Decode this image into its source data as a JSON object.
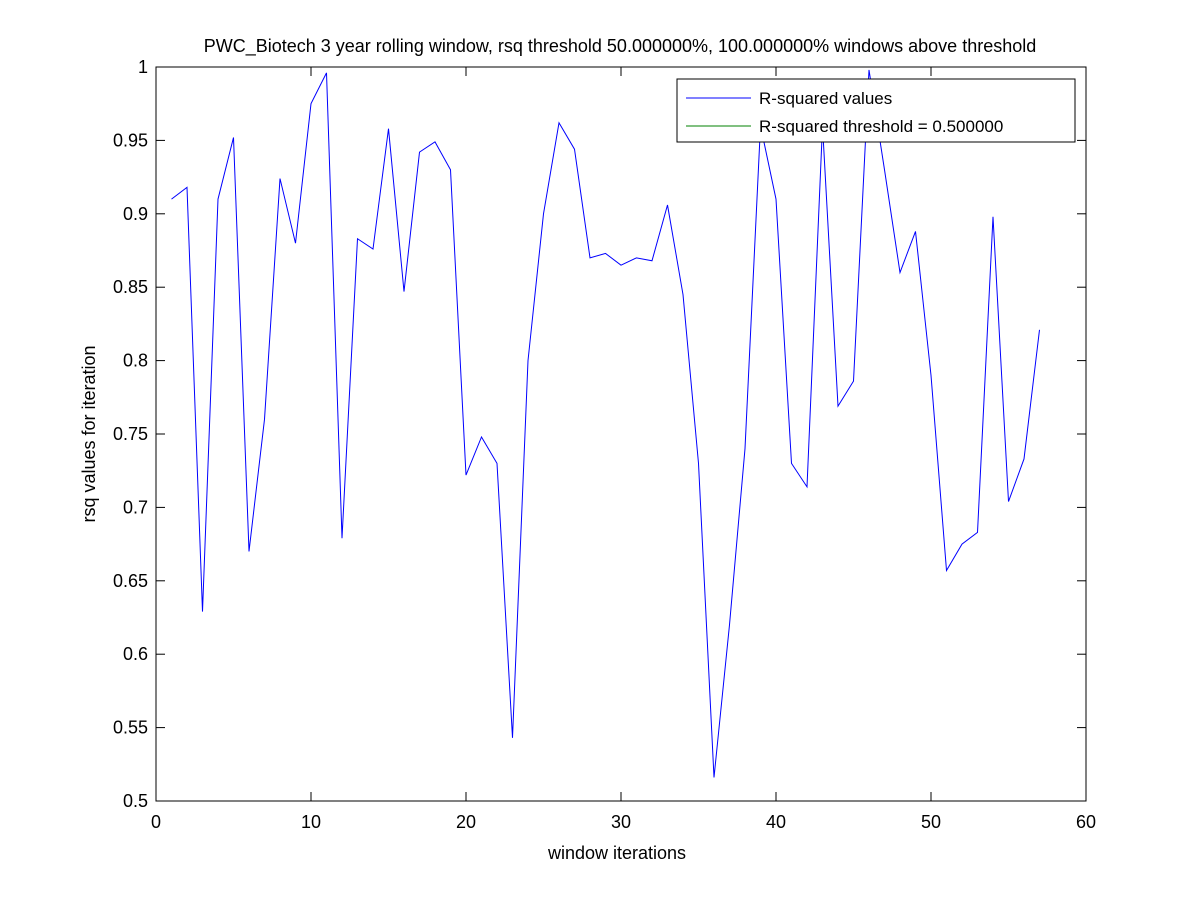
{
  "chart_data": {
    "type": "line",
    "title": "PWC_Biotech 3 year rolling window, rsq threshold 50.000000%, 100.000000% windows above threshold",
    "xlabel": "window iterations",
    "ylabel": "rsq values for iteration",
    "xlim": [
      0,
      60
    ],
    "ylim": [
      0.5,
      1
    ],
    "xticks": [
      0,
      10,
      20,
      30,
      40,
      50,
      60
    ],
    "xtick_labels": [
      "0",
      "10",
      "20",
      "30",
      "40",
      "50",
      "60"
    ],
    "yticks": [
      0.5,
      0.55,
      0.6,
      0.65,
      0.7,
      0.75,
      0.8,
      0.85,
      0.9,
      0.95,
      1
    ],
    "ytick_labels": [
      "0.5",
      "0.55",
      "0.6",
      "0.65",
      "0.7",
      "0.75",
      "0.8",
      "0.85",
      "0.9",
      "0.95",
      "1"
    ],
    "grid": false,
    "legend_position": "top-right",
    "series": [
      {
        "name": "R-squared values",
        "color": "#0000ff",
        "x": [
          1,
          2,
          3,
          4,
          5,
          6,
          7,
          8,
          9,
          10,
          11,
          12,
          13,
          14,
          15,
          16,
          17,
          18,
          19,
          20,
          21,
          22,
          23,
          24,
          25,
          26,
          27,
          28,
          29,
          30,
          31,
          32,
          33,
          34,
          35,
          36,
          37,
          38,
          39,
          40,
          41,
          42,
          43,
          44,
          45,
          46,
          47,
          48,
          49,
          50,
          51,
          52,
          53,
          54,
          55,
          56,
          57
        ],
        "values": [
          0.91,
          0.918,
          0.629,
          0.91,
          0.952,
          0.67,
          0.76,
          0.924,
          0.88,
          0.975,
          0.996,
          0.679,
          0.883,
          0.876,
          0.958,
          0.847,
          0.942,
          0.949,
          0.93,
          0.722,
          0.748,
          0.73,
          0.543,
          0.8,
          0.9,
          0.962,
          0.944,
          0.87,
          0.873,
          0.865,
          0.87,
          0.868,
          0.906,
          0.845,
          0.73,
          0.516,
          0.62,
          0.74,
          0.96,
          0.91,
          0.73,
          0.714,
          0.96,
          0.769,
          0.786,
          0.998,
          0.93,
          0.86,
          0.888,
          0.79,
          0.657,
          0.675,
          0.683,
          0.898,
          0.704,
          0.733,
          0.821
        ]
      },
      {
        "name": "R-squared threshold = 0.500000",
        "color": "#008000",
        "x": [
          1,
          57
        ],
        "values": [
          0.5,
          0.5
        ]
      }
    ]
  }
}
